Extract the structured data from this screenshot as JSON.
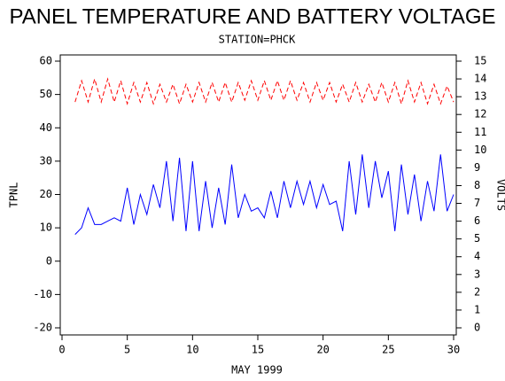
{
  "chart_data": {
    "type": "line",
    "title": "PANEL TEMPERATURE AND BATTERY VOLTAGE",
    "subtitle": "STATION=PHCK",
    "x_label": "MAY 1999",
    "y_label": "TPNL",
    "y2_label": "VOLTS",
    "x": [
      1,
      1.5,
      2,
      2.5,
      3,
      3.5,
      4,
      4.5,
      5,
      5.5,
      6,
      6.5,
      7,
      7.5,
      8,
      8.5,
      9,
      9.5,
      10,
      10.5,
      11,
      11.5,
      12,
      12.5,
      13,
      13.5,
      14,
      14.5,
      15,
      15.5,
      16,
      16.5,
      17,
      17.5,
      18,
      18.5,
      19,
      19.5,
      20,
      20.5,
      21,
      21.5,
      22,
      22.5,
      23,
      23.5,
      24,
      24.5,
      25,
      25.5,
      26,
      26.5,
      27,
      27.5,
      28,
      28.5,
      29,
      29.5,
      30
    ],
    "series": [
      {
        "name": "TPNL",
        "color": "#0000ff",
        "dashed": false,
        "values": [
          8,
          10,
          16,
          11,
          11,
          12,
          13,
          12,
          22,
          11,
          20,
          14,
          23,
          16,
          30,
          12,
          31,
          9,
          30,
          9,
          24,
          10,
          22,
          11,
          29,
          13,
          20,
          15,
          16,
          13,
          21,
          13,
          24,
          16,
          24,
          17,
          24,
          16,
          23,
          17,
          18,
          9,
          30,
          14,
          32,
          16,
          30,
          19,
          27,
          9,
          29,
          14,
          26,
          12,
          24,
          15,
          32,
          15,
          20
        ]
      },
      {
        "name": "VOLTS",
        "color": "#ff0000",
        "dashed": true,
        "axis": "y2",
        "values": [
          12.7,
          13.9,
          12.7,
          14,
          12.7,
          14,
          12.7,
          13.9,
          12.6,
          13.8,
          12.7,
          13.8,
          12.6,
          13.7,
          12.7,
          13.7,
          12.6,
          13.7,
          12.7,
          13.8,
          12.7,
          13.8,
          12.7,
          13.8,
          12.7,
          13.8,
          12.8,
          13.9,
          12.8,
          13.9,
          12.8,
          13.9,
          12.8,
          13.9,
          12.8,
          13.8,
          12.7,
          13.8,
          12.8,
          13.8,
          12.7,
          13.7,
          12.7,
          13.8,
          12.7,
          13.7,
          12.7,
          13.8,
          12.7,
          13.8,
          12.6,
          13.9,
          12.7,
          13.8,
          12.6,
          13.7,
          12.6,
          13.6,
          12.7
        ]
      }
    ],
    "xlim": [
      0,
      30
    ],
    "xticks": [
      0,
      5,
      10,
      15,
      20,
      25,
      30
    ],
    "ylim": [
      -20,
      60
    ],
    "yticks": [
      -20,
      -10,
      0,
      10,
      20,
      30,
      40,
      50,
      60
    ],
    "y2lim": [
      0,
      15
    ],
    "y2ticks": [
      0,
      1,
      2,
      3,
      4,
      5,
      6,
      7,
      8,
      9,
      10,
      11,
      12,
      13,
      14,
      15
    ]
  }
}
